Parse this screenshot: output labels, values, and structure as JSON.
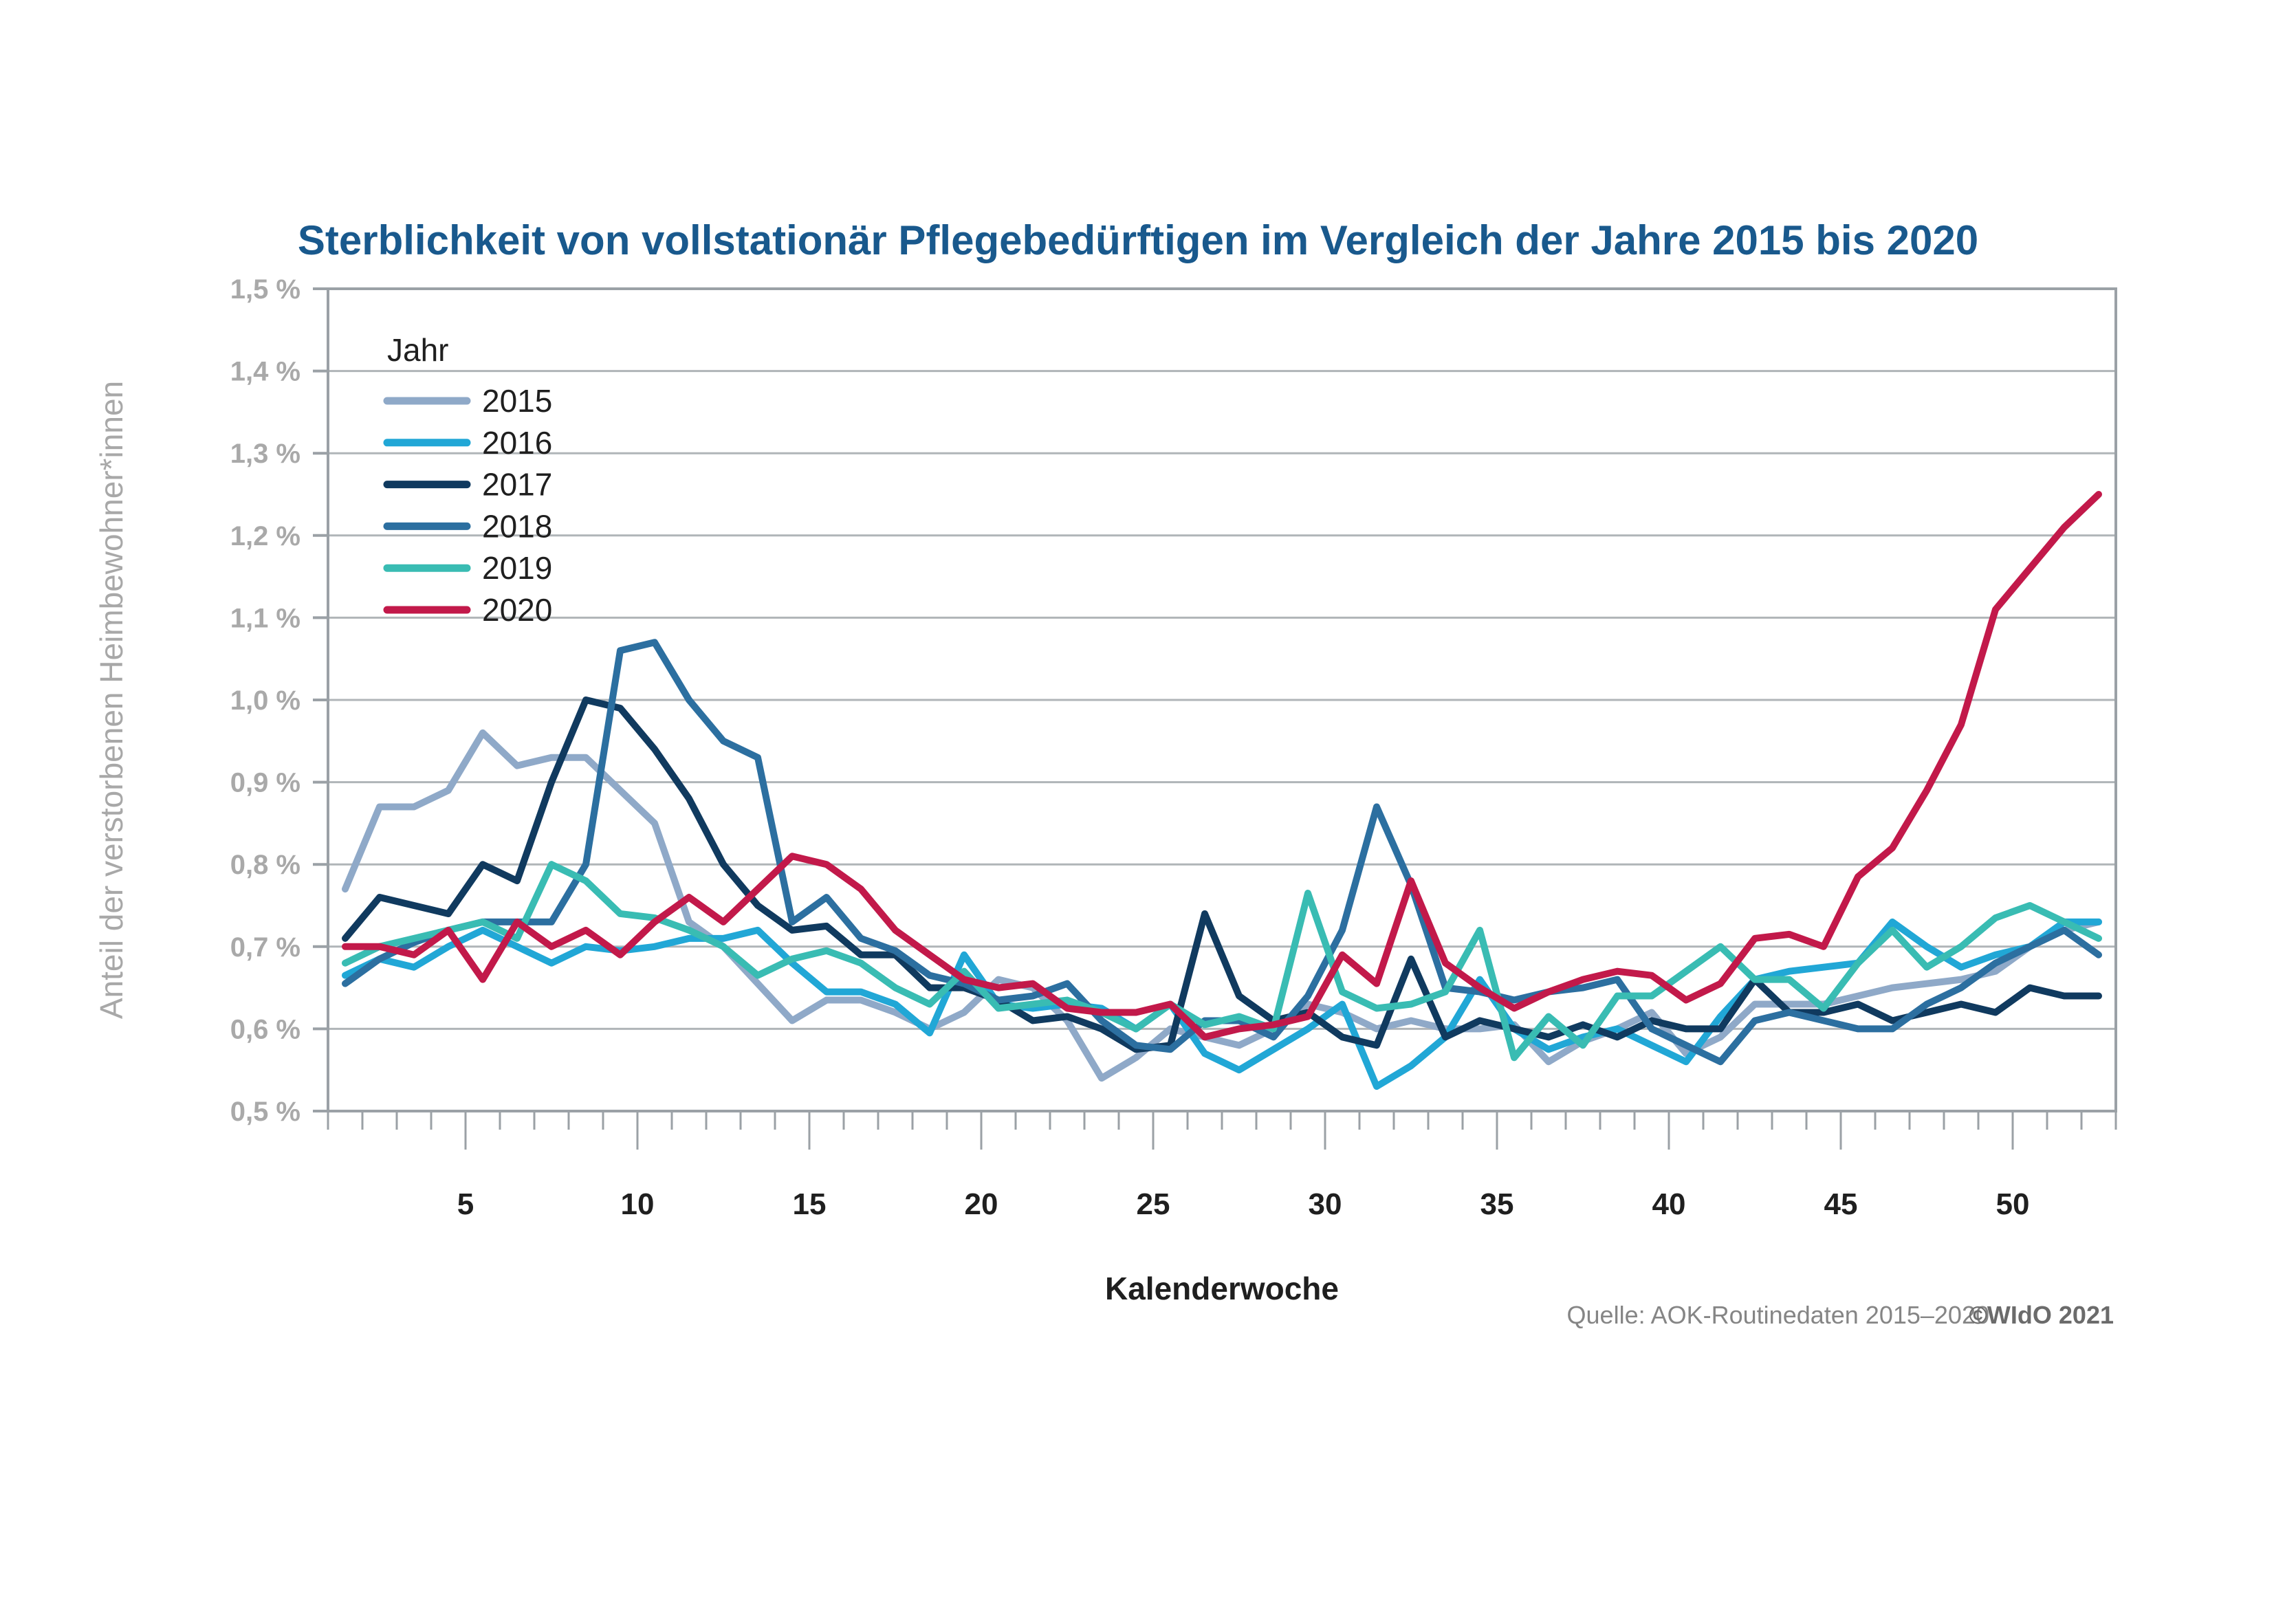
{
  "page": {
    "background": "#FFFFFF"
  },
  "chart_data": {
    "type": "line",
    "title": "Sterblichkeit von vollstationär Pflegebedürftigen im Vergleich der Jahre 2015 bis 2020",
    "title_color": "#19598D",
    "xlabel": "Kalenderwoche",
    "ylabel": "Anteil der verstorbenen Heimbewohner*innen",
    "legend_title": "Jahr",
    "legend_position": "inside-top-left",
    "grid": true,
    "x_weeks": [
      1,
      2,
      3,
      4,
      5,
      6,
      7,
      8,
      9,
      10,
      11,
      12,
      13,
      14,
      15,
      16,
      17,
      18,
      19,
      20,
      21,
      22,
      23,
      24,
      25,
      26,
      27,
      28,
      29,
      30,
      31,
      32,
      33,
      34,
      35,
      36,
      37,
      38,
      39,
      40,
      41,
      42,
      43,
      44,
      45,
      46,
      47,
      48,
      49,
      50,
      51,
      52
    ],
    "xticks": [
      5,
      10,
      15,
      20,
      25,
      30,
      35,
      40,
      45,
      50
    ],
    "ylim": [
      0.5,
      1.5
    ],
    "yticks": [
      0.5,
      0.6,
      0.7,
      0.8,
      0.9,
      1.0,
      1.1,
      1.2,
      1.3,
      1.4,
      1.5
    ],
    "ytick_labels": [
      "0,5 %",
      "0,6 %",
      "0,7 %",
      "0,8 %",
      "0,9 %",
      "1,0 %",
      "1,1 %",
      "1,2 %",
      "1,3 %",
      "1,4 %",
      "1,5 %"
    ],
    "axis_color": "#9BA1A6",
    "grid_color": "#B0B5B8",
    "ytick_label_color": "#A9A9A9",
    "xtick_label_color": "#1F1F1F",
    "series": [
      {
        "name": "2015",
        "color": "#8FA9C8",
        "values": [
          0.77,
          0.87,
          0.87,
          0.89,
          0.96,
          0.92,
          0.93,
          0.93,
          0.89,
          0.85,
          0.73,
          0.7,
          0.655,
          0.61,
          0.635,
          0.635,
          0.62,
          0.6,
          0.62,
          0.66,
          0.65,
          0.61,
          0.54,
          0.565,
          0.6,
          0.59,
          0.58,
          0.6,
          0.63,
          0.62,
          0.6,
          0.61,
          0.6,
          0.6,
          0.605,
          0.56,
          0.585,
          0.6,
          0.62,
          0.57,
          0.59,
          0.63,
          0.63,
          0.63,
          0.64,
          0.65,
          0.655,
          0.66,
          0.67,
          0.7,
          0.72,
          0.73
        ]
      },
      {
        "name": "2016",
        "color": "#21A7D6",
        "values": [
          0.665,
          0.685,
          0.675,
          0.7,
          0.72,
          0.7,
          0.68,
          0.7,
          0.695,
          0.7,
          0.71,
          0.71,
          0.72,
          0.68,
          0.645,
          0.645,
          0.63,
          0.595,
          0.69,
          0.63,
          0.625,
          0.63,
          0.625,
          0.6,
          0.63,
          0.57,
          0.55,
          0.575,
          0.6,
          0.63,
          0.53,
          0.555,
          0.59,
          0.66,
          0.6,
          0.575,
          0.59,
          0.6,
          0.58,
          0.56,
          0.615,
          0.66,
          0.67,
          0.675,
          0.68,
          0.73,
          0.7,
          0.675,
          0.69,
          0.7,
          0.73,
          0.73
        ]
      },
      {
        "name": "2017",
        "color": "#103A5F",
        "values": [
          0.71,
          0.76,
          0.75,
          0.74,
          0.8,
          0.78,
          0.9,
          1.0,
          0.99,
          0.94,
          0.88,
          0.8,
          0.75,
          0.72,
          0.725,
          0.69,
          0.69,
          0.65,
          0.65,
          0.635,
          0.61,
          0.615,
          0.6,
          0.575,
          0.58,
          0.74,
          0.64,
          0.61,
          0.62,
          0.59,
          0.58,
          0.685,
          0.59,
          0.61,
          0.6,
          0.59,
          0.605,
          0.59,
          0.61,
          0.6,
          0.6,
          0.66,
          0.62,
          0.62,
          0.63,
          0.61,
          0.62,
          0.63,
          0.62,
          0.65,
          0.64,
          0.64
        ]
      },
      {
        "name": "2018",
        "color": "#2C6FA0",
        "values": [
          0.655,
          0.685,
          0.705,
          0.72,
          0.73,
          0.73,
          0.73,
          0.8,
          1.06,
          1.07,
          1.0,
          0.95,
          0.93,
          0.73,
          0.76,
          0.71,
          0.695,
          0.665,
          0.655,
          0.635,
          0.64,
          0.655,
          0.61,
          0.58,
          0.575,
          0.61,
          0.61,
          0.59,
          0.64,
          0.72,
          0.87,
          0.775,
          0.65,
          0.645,
          0.635,
          0.645,
          0.65,
          0.66,
          0.6,
          0.58,
          0.56,
          0.61,
          0.62,
          0.61,
          0.6,
          0.6,
          0.63,
          0.65,
          0.68,
          0.7,
          0.72,
          0.69
        ]
      },
      {
        "name": "2019",
        "color": "#39BCB3",
        "values": [
          0.68,
          0.7,
          0.71,
          0.72,
          0.73,
          0.71,
          0.8,
          0.78,
          0.74,
          0.735,
          0.72,
          0.7,
          0.665,
          0.685,
          0.695,
          0.68,
          0.65,
          0.63,
          0.67,
          0.625,
          0.63,
          0.635,
          0.62,
          0.6,
          0.63,
          0.605,
          0.615,
          0.6,
          0.765,
          0.645,
          0.625,
          0.63,
          0.645,
          0.72,
          0.565,
          0.615,
          0.58,
          0.64,
          0.64,
          0.67,
          0.7,
          0.66,
          0.66,
          0.625,
          0.68,
          0.72,
          0.675,
          0.7,
          0.735,
          0.75,
          0.73,
          0.71
        ]
      },
      {
        "name": "2020",
        "color": "#C2194A",
        "values": [
          0.7,
          0.7,
          0.69,
          0.72,
          0.66,
          0.73,
          0.7,
          0.72,
          0.69,
          0.73,
          0.76,
          0.73,
          0.77,
          0.81,
          0.8,
          0.77,
          0.72,
          0.69,
          0.66,
          0.65,
          0.655,
          0.625,
          0.62,
          0.62,
          0.63,
          0.59,
          0.6,
          0.605,
          0.615,
          0.69,
          0.655,
          0.78,
          0.68,
          0.65,
          0.625,
          0.645,
          0.66,
          0.67,
          0.665,
          0.635,
          0.655,
          0.71,
          0.715,
          0.7,
          0.785,
          0.82,
          0.89,
          0.97,
          1.11,
          1.16,
          1.21,
          1.25
        ]
      }
    ]
  },
  "source": {
    "text": "Quelle: AOK-Routinedaten 2015–2020",
    "copyright": "©WIdO 2021"
  }
}
